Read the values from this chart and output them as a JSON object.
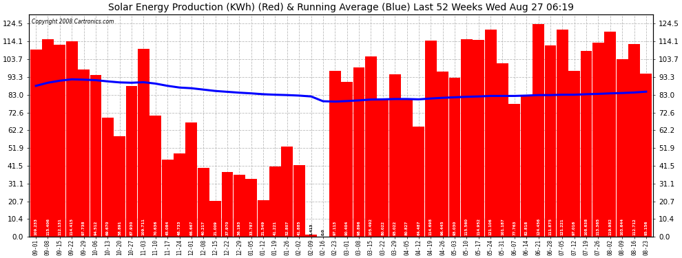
{
  "title": "Solar Energy Production (KWh) (Red) & Running Average (Blue) Last 52 Weeks Wed Aug 27 06:19",
  "copyright": "Copyright 2008 Cartronics.com",
  "bar_values": [
    109.233,
    115.406,
    112.131,
    114.415,
    97.738,
    94.512,
    69.67,
    58.891,
    87.93,
    109.711,
    70.636,
    45.084,
    48.733,
    66.667,
    40.217,
    21.009,
    37.97,
    36.193,
    33.787,
    21.549,
    41.221,
    52.807,
    41.885,
    1.413,
    0.0,
    97.113,
    90.404,
    98.896,
    105.492,
    80.022,
    95.022,
    80.827,
    64.487,
    114.698,
    96.445,
    93.03,
    115.56,
    114.952,
    121.106,
    101.187,
    77.763,
    82.818,
    124.456,
    111.875,
    121.221,
    97.016,
    108.638,
    113.365,
    119.982,
    103.644,
    112.712,
    95.156
  ],
  "x_labels": [
    "09-01",
    "09-08",
    "09-15",
    "09-22",
    "09-29",
    "10-06",
    "10-13",
    "10-20",
    "10-27",
    "11-03",
    "11-10",
    "11-17",
    "11-24",
    "12-01",
    "12-08",
    "12-15",
    "12-22",
    "12-29",
    "01-05",
    "01-12",
    "01-19",
    "01-26",
    "02-02",
    "02-09",
    "02-16",
    "02-23",
    "03-01",
    "03-08",
    "03-15",
    "03-22",
    "03-29",
    "04-05",
    "04-12",
    "04-19",
    "04-26",
    "05-03",
    "05-10",
    "05-17",
    "05-24",
    "05-31",
    "06-07",
    "06-14",
    "06-21",
    "06-28",
    "07-05",
    "07-12",
    "07-19",
    "07-26",
    "08-02",
    "08-09",
    "08-16",
    "08-23"
  ],
  "running_avg": [
    88.2,
    90.0,
    91.2,
    92.0,
    91.8,
    91.5,
    90.8,
    90.2,
    90.0,
    90.3,
    89.5,
    88.2,
    87.2,
    86.8,
    86.0,
    85.2,
    84.7,
    84.2,
    83.8,
    83.3,
    83.0,
    82.8,
    82.5,
    82.0,
    79.2,
    79.0,
    79.3,
    79.7,
    80.2,
    80.3,
    80.5,
    80.5,
    80.3,
    80.8,
    81.2,
    81.5,
    81.8,
    82.0,
    82.3,
    82.3,
    82.3,
    82.5,
    82.8,
    82.8,
    83.0,
    83.0,
    83.3,
    83.5,
    83.8,
    84.0,
    84.3,
    84.8
  ],
  "yticks": [
    0.0,
    10.4,
    20.7,
    31.1,
    41.5,
    51.9,
    62.2,
    72.6,
    83.0,
    93.3,
    103.7,
    114.1,
    124.5
  ],
  "ylim": [
    0.0,
    130.0
  ],
  "bar_color": "#FF0000",
  "avg_line_color": "#0000FF",
  "background_color": "#FFFFFF",
  "grid_color": "#BBBBBB",
  "title_fontsize": 10,
  "tick_fontsize": 7.5,
  "xlabel_fontsize": 5.5,
  "bar_label_fontsize": 4.0
}
